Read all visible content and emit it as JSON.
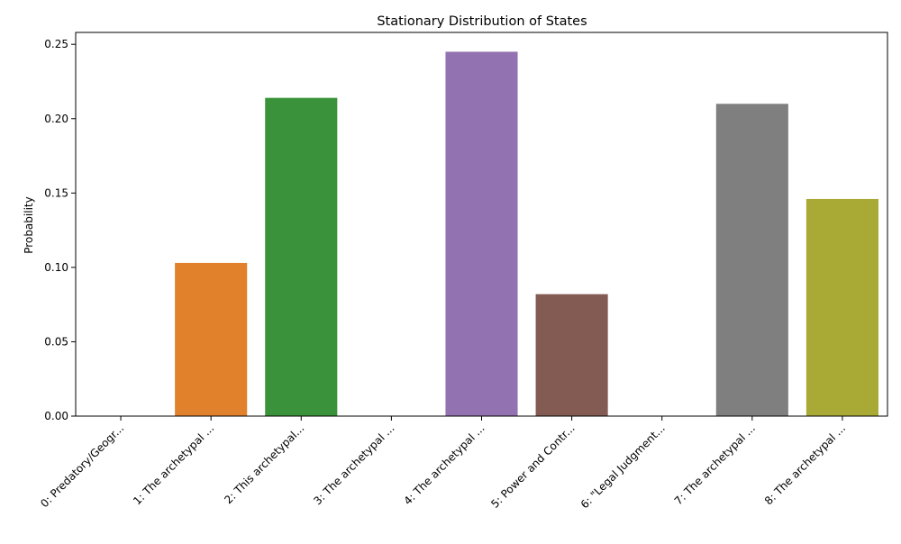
{
  "chart_data": {
    "type": "bar",
    "title": "Stationary Distribution of States",
    "xlabel": "",
    "ylabel": "Probability",
    "categories": [
      "0: Predatory/Geogr...",
      "1: The archetypal ...",
      "2: This archetypal...",
      "3: The archetypal ...",
      "4: The archetypal ...",
      "5: Power and Contr...",
      "6: \"Legal Judgment...",
      "7: The archetypal ...",
      "8: The archetypal ..."
    ],
    "values": [
      0.0,
      0.103,
      0.214,
      0.0,
      0.245,
      0.082,
      0.0,
      0.21,
      0.146
    ],
    "colors": [
      "#1f77b4",
      "#e1812c",
      "#3a923a",
      "#c03d3e",
      "#9372b2",
      "#845b53",
      "#d684bd",
      "#7f7f7f",
      "#a9aa35"
    ],
    "ylim": [
      0,
      0.258
    ],
    "yticks": [
      0.0,
      0.05,
      0.1,
      0.15,
      0.2,
      0.25
    ],
    "ytick_labels": [
      "0.00",
      "0.05",
      "0.10",
      "0.15",
      "0.20",
      "0.25"
    ],
    "grid": false,
    "legend": "none"
  }
}
